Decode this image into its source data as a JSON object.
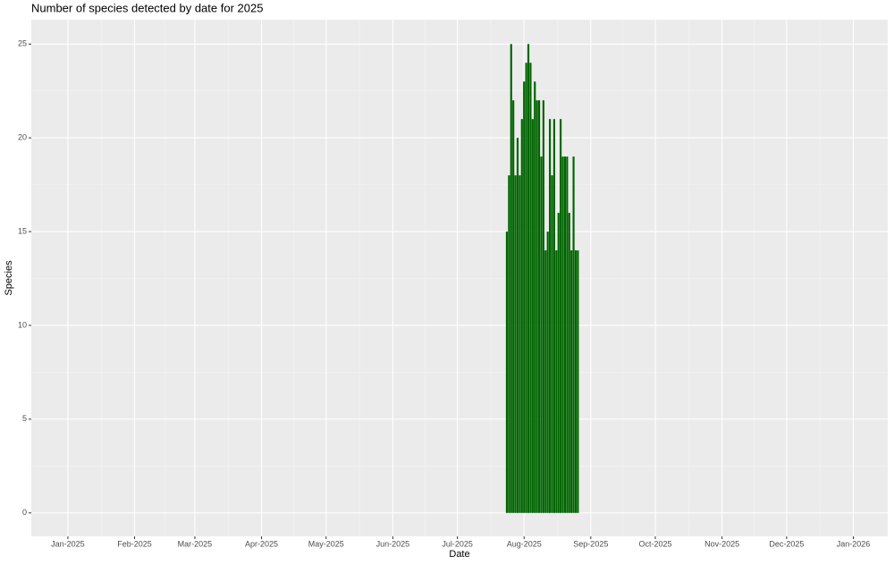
{
  "chart_data": {
    "type": "bar",
    "title": "Number of species detected by date for 2025",
    "x_label": "Date",
    "y_label": "Species",
    "x": [
      "2025-07-24",
      "2025-07-25",
      "2025-07-26",
      "2025-07-27",
      "2025-07-28",
      "2025-07-29",
      "2025-07-30",
      "2025-07-31",
      "2025-08-01",
      "2025-08-02",
      "2025-08-03",
      "2025-08-04",
      "2025-08-05",
      "2025-08-06",
      "2025-08-07",
      "2025-08-08",
      "2025-08-09",
      "2025-08-10",
      "2025-08-11",
      "2025-08-12",
      "2025-08-13",
      "2025-08-14",
      "2025-08-15",
      "2025-08-16",
      "2025-08-17",
      "2025-08-18",
      "2025-08-19",
      "2025-08-20",
      "2025-08-21",
      "2025-08-22",
      "2025-08-23",
      "2025-08-24",
      "2025-08-25",
      "2025-08-26"
    ],
    "values": [
      15,
      18,
      25,
      22,
      18,
      20,
      18,
      21,
      23,
      24,
      25,
      24,
      21,
      23,
      22,
      22,
      19,
      22,
      14,
      15,
      21,
      18,
      21,
      14,
      16,
      21,
      19,
      19,
      19,
      16,
      14,
      19,
      14,
      14
    ],
    "color": "#006400",
    "xlim": [
      "2024-12-15",
      "2026-01-17"
    ],
    "xticks": [
      {
        "value": "2025-01-01",
        "label": "Jan-2025"
      },
      {
        "value": "2025-02-01",
        "label": "Feb-2025"
      },
      {
        "value": "2025-03-01",
        "label": "Mar-2025"
      },
      {
        "value": "2025-04-01",
        "label": "Apr-2025"
      },
      {
        "value": "2025-05-01",
        "label": "May-2025"
      },
      {
        "value": "2025-06-01",
        "label": "Jun-2025"
      },
      {
        "value": "2025-07-01",
        "label": "Jul-2025"
      },
      {
        "value": "2025-08-01",
        "label": "Aug-2025"
      },
      {
        "value": "2025-09-01",
        "label": "Sep-2025"
      },
      {
        "value": "2025-10-01",
        "label": "Oct-2025"
      },
      {
        "value": "2025-11-01",
        "label": "Nov-2025"
      },
      {
        "value": "2025-12-01",
        "label": "Dec-2025"
      },
      {
        "value": "2026-01-01",
        "label": "Jan-2026"
      }
    ],
    "ylim": [
      -1.25,
      26.3
    ],
    "yticks": [
      0,
      5,
      10,
      15,
      20,
      25
    ],
    "grid": true
  }
}
